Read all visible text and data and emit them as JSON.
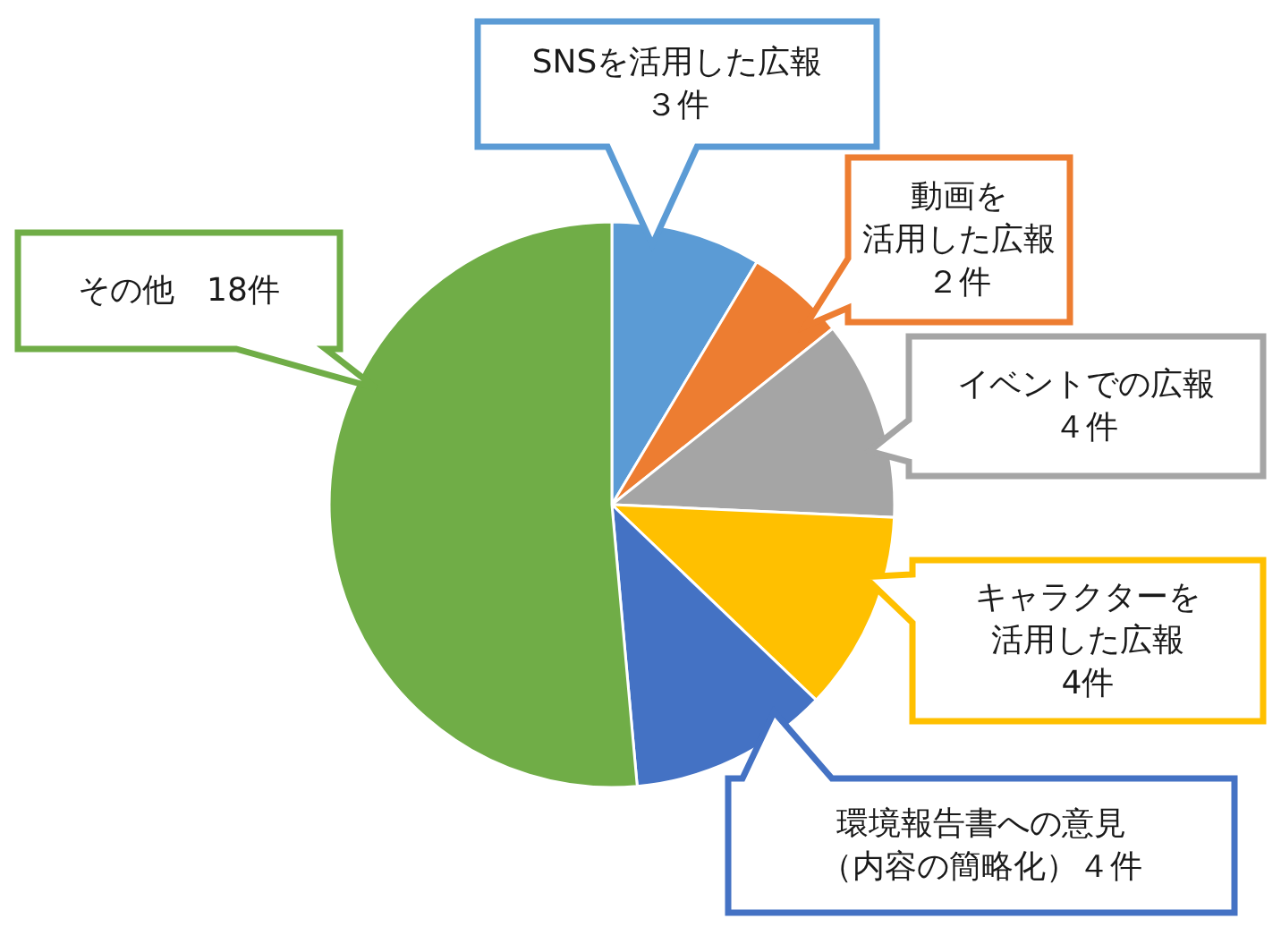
{
  "chart_data": {
    "type": "pie",
    "categories": [
      "SNSを活用した広報",
      "動画を活用した広報",
      "イベントでの広報",
      "キャラクターを活用した広報",
      "環境報告書への意見（内容の簡略化）",
      "その他"
    ],
    "values": [
      3,
      2,
      4,
      4,
      4,
      18
    ],
    "colors": [
      "#5b9bd5",
      "#ed7d31",
      "#a5a5a5",
      "#ffc000",
      "#4472c4",
      "#70ad47"
    ],
    "value_labels": [
      "３件",
      "２件",
      "４件",
      "4件",
      "４件",
      "18件"
    ]
  }
}
